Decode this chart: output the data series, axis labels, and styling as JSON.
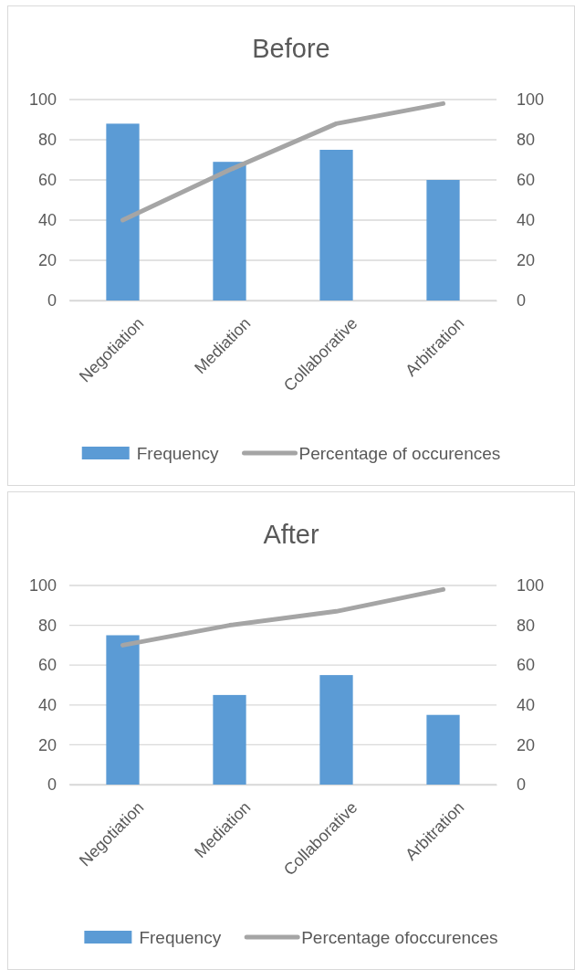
{
  "chart_data": [
    {
      "type": "bar",
      "title": "Before",
      "categories": [
        "Negotiation",
        "Mediation",
        "Collaborative",
        "Arbitration"
      ],
      "series": [
        {
          "name": "Frequency",
          "color": "#5b9bd5",
          "values": [
            88,
            69,
            75,
            60
          ]
        },
        {
          "name": "Percentage of occurences",
          "type": "line",
          "axis": "y2",
          "color": "#a5a5a5",
          "values": [
            40,
            65,
            88,
            98
          ]
        }
      ],
      "ylim": [
        0,
        100
      ],
      "yticks": [
        0,
        20,
        40,
        60,
        80,
        100
      ],
      "y2lim": [
        0,
        100
      ],
      "y2ticks": [
        0,
        20,
        40,
        60,
        80,
        100
      ],
      "grid": "y",
      "legend": "bottom",
      "marker": "none"
    },
    {
      "type": "bar",
      "title": "After",
      "categories": [
        "Negotiation",
        "Mediation",
        "Collaborative",
        "Arbitration"
      ],
      "series": [
        {
          "name": "Frequency",
          "color": "#5b9bd5",
          "values": [
            75,
            45,
            55,
            35
          ]
        },
        {
          "name": "Percentage ofoccurences",
          "type": "line",
          "axis": "y2",
          "color": "#a5a5a5",
          "values": [
            70,
            80,
            87,
            98
          ]
        }
      ],
      "ylim": [
        0,
        100
      ],
      "yticks": [
        0,
        20,
        40,
        60,
        80,
        100
      ],
      "y2lim": [
        0,
        100
      ],
      "y2ticks": [
        0,
        20,
        40,
        60,
        80,
        100
      ],
      "grid": "y",
      "legend": "bottom",
      "marker": "none"
    }
  ]
}
